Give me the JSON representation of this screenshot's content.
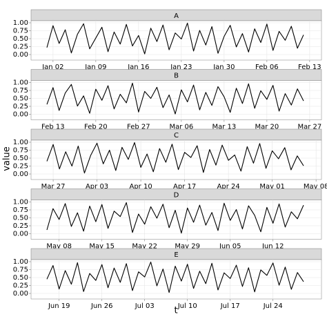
{
  "x_label": "t",
  "y_label": "value",
  "chart_data": [
    {
      "type": "line",
      "title": "A",
      "x": [
        "Jan 01",
        "Jan 02",
        "Jan 03",
        "Jan 04",
        "Jan 05",
        "Jan 06",
        "Jan 07",
        "Jan 08",
        "Jan 09",
        "Jan 10",
        "Jan 11",
        "Jan 12",
        "Jan 13",
        "Jan 14",
        "Jan 15",
        "Jan 16",
        "Jan 17",
        "Jan 18",
        "Jan 19",
        "Jan 20",
        "Jan 21",
        "Jan 22",
        "Jan 23",
        "Jan 24",
        "Jan 25",
        "Jan 26",
        "Jan 27",
        "Jan 28",
        "Jan 29",
        "Jan 30",
        "Jan 31",
        "Feb 01",
        "Feb 02",
        "Feb 03",
        "Feb 04",
        "Feb 05",
        "Feb 06",
        "Feb 07",
        "Feb 08",
        "Feb 09",
        "Feb 10",
        "Feb 11",
        "Feb 12"
      ],
      "values": [
        0.22,
        0.91,
        0.35,
        0.78,
        0.05,
        0.64,
        0.97,
        0.18,
        0.52,
        0.86,
        0.09,
        0.71,
        0.33,
        0.95,
        0.27,
        0.6,
        0.02,
        0.83,
        0.41,
        0.93,
        0.15,
        0.68,
        0.49,
        0.99,
        0.11,
        0.76,
        0.3,
        0.88,
        0.04,
        0.57,
        0.92,
        0.24,
        0.66,
        0.08,
        0.81,
        0.38,
        0.96,
        0.13,
        0.73,
        0.45,
        0.89,
        0.2,
        0.62
      ],
      "color": "#000000",
      "xlim": [
        "Jan 01",
        "Feb 12"
      ],
      "xticks": [
        "Jan 02",
        "Jan 09",
        "Jan 16",
        "Jan 23",
        "Jan 30",
        "Feb 06",
        "Feb 13"
      ],
      "ylim": [
        0,
        1
      ],
      "yticks": [
        {
          "value": 0,
          "label": "0.00"
        },
        0.25,
        {
          "value": 0.5,
          "label": "0.50"
        },
        0.75,
        {
          "value": 1,
          "label": "1.00"
        }
      ],
      "grid": true
    },
    {
      "type": "line",
      "title": "B",
      "x": [
        "Feb 12",
        "Feb 13",
        "Feb 14",
        "Feb 15",
        "Feb 16",
        "Feb 17",
        "Feb 18",
        "Feb 19",
        "Feb 20",
        "Feb 21",
        "Feb 22",
        "Feb 23",
        "Feb 24",
        "Feb 25",
        "Feb 26",
        "Feb 27",
        "Feb 28",
        "Mar 01",
        "Mar 02",
        "Mar 03",
        "Mar 04",
        "Mar 05",
        "Mar 06",
        "Mar 07",
        "Mar 08",
        "Mar 09",
        "Mar 10",
        "Mar 11",
        "Mar 12",
        "Mar 13",
        "Mar 14",
        "Mar 15",
        "Mar 16",
        "Mar 17",
        "Mar 18",
        "Mar 19",
        "Mar 20",
        "Mar 21",
        "Mar 22",
        "Mar 23",
        "Mar 24",
        "Mar 25",
        "Mar 26"
      ],
      "values": [
        0.31,
        0.84,
        0.12,
        0.67,
        0.94,
        0.26,
        0.58,
        0.03,
        0.79,
        0.44,
        0.9,
        0.17,
        0.63,
        0.36,
        0.98,
        0.07,
        0.72,
        0.5,
        0.85,
        0.21,
        0.61,
        0.01,
        0.77,
        0.39,
        0.92,
        0.14,
        0.69,
        0.28,
        0.87,
        0.55,
        0.06,
        0.82,
        0.34,
        0.96,
        0.19,
        0.74,
        0.47,
        0.91,
        0.1,
        0.65,
        0.29,
        0.8,
        0.42
      ],
      "color": "#000000",
      "xlim": [
        "Feb 12",
        "Mar 26"
      ],
      "xticks": [
        "Feb 13",
        "Feb 20",
        "Feb 27",
        "Mar 06",
        "Mar 13",
        "Mar 20",
        "Mar 27"
      ],
      "ylim": [
        0,
        1
      ],
      "yticks": [
        {
          "value": 0,
          "label": "0.00"
        },
        0.25,
        {
          "value": 0.5,
          "label": "0.50"
        },
        0.75,
        {
          "value": 1,
          "label": "1.00"
        }
      ],
      "grid": true
    },
    {
      "type": "line",
      "title": "C",
      "x": [
        "Mar 26",
        "Mar 27",
        "Mar 28",
        "Mar 29",
        "Mar 30",
        "Mar 31",
        "Apr 01",
        "Apr 02",
        "Apr 03",
        "Apr 04",
        "Apr 05",
        "Apr 06",
        "Apr 07",
        "Apr 08",
        "Apr 09",
        "Apr 10",
        "Apr 11",
        "Apr 12",
        "Apr 13",
        "Apr 14",
        "Apr 15",
        "Apr 16",
        "Apr 17",
        "Apr 18",
        "Apr 19",
        "Apr 20",
        "Apr 21",
        "Apr 22",
        "Apr 23",
        "Apr 24",
        "Apr 25",
        "Apr 26",
        "Apr 27",
        "Apr 28",
        "Apr 29",
        "Apr 30",
        "May 01",
        "May 02",
        "May 03",
        "May 04",
        "May 05",
        "May 06"
      ],
      "values": [
        0.4,
        0.93,
        0.16,
        0.7,
        0.25,
        0.88,
        0.03,
        0.59,
        0.97,
        0.32,
        0.75,
        0.11,
        0.84,
        0.46,
        0.99,
        0.21,
        0.63,
        0.07,
        0.8,
        0.37,
        0.94,
        0.14,
        0.68,
        0.52,
        0.89,
        0.05,
        0.77,
        0.28,
        0.91,
        0.43,
        0.6,
        0.09,
        0.86,
        0.34,
        0.96,
        0.18,
        0.73,
        0.48,
        0.83,
        0.13,
        0.57,
        0.26
      ],
      "color": "#000000",
      "xlim": [
        "Mar 26",
        "May 06"
      ],
      "xticks": [
        "Mar 27",
        "Apr 03",
        "Apr 10",
        "Apr 17",
        "Apr 24",
        "May 01",
        "May 08"
      ],
      "ylim": [
        0,
        1
      ],
      "yticks": [
        {
          "value": 0,
          "label": "0.00"
        },
        0.25,
        {
          "value": 0.5,
          "label": "0.50"
        },
        0.75,
        {
          "value": 1,
          "label": "1.00"
        }
      ],
      "grid": true
    },
    {
      "type": "line",
      "title": "D",
      "x": [
        "May 06",
        "May 07",
        "May 08",
        "May 09",
        "May 10",
        "May 11",
        "May 12",
        "May 13",
        "May 14",
        "May 15",
        "May 16",
        "May 17",
        "May 18",
        "May 19",
        "May 20",
        "May 21",
        "May 22",
        "May 23",
        "May 24",
        "May 25",
        "May 26",
        "May 27",
        "May 28",
        "May 29",
        "May 30",
        "May 31",
        "Jun 01",
        "Jun 02",
        "Jun 03",
        "Jun 04",
        "Jun 05",
        "Jun 06",
        "Jun 07",
        "Jun 08",
        "Jun 09",
        "Jun 10",
        "Jun 11",
        "Jun 12",
        "Jun 13",
        "Jun 14",
        "Jun 15",
        "Jun 16",
        "Jun 17"
      ],
      "values": [
        0.12,
        0.79,
        0.45,
        0.95,
        0.23,
        0.66,
        0.08,
        0.87,
        0.38,
        0.92,
        0.17,
        0.71,
        0.54,
        0.98,
        0.04,
        0.62,
        0.3,
        0.85,
        0.49,
        0.93,
        0.19,
        0.74,
        0.02,
        0.81,
        0.36,
        0.9,
        0.27,
        0.67,
        0.1,
        0.96,
        0.42,
        0.76,
        0.15,
        0.88,
        0.58,
        0.06,
        0.83,
        0.33,
        0.94,
        0.21,
        0.69,
        0.47,
        0.9
      ],
      "color": "#000000",
      "xlim": [
        "May 06",
        "Jun 17"
      ],
      "xticks": [
        "May 08",
        "May 15",
        "May 22",
        "May 29",
        "Jun 05",
        "Jun 12"
      ],
      "ylim": [
        0,
        1
      ],
      "yticks": [
        {
          "value": 0,
          "label": "0.00"
        },
        0.25,
        {
          "value": 0.5,
          "label": "0.50"
        },
        0.75,
        {
          "value": 1,
          "label": "1.00"
        }
      ],
      "grid": true
    },
    {
      "type": "line",
      "title": "E",
      "x": [
        "Jun 17",
        "Jun 18",
        "Jun 19",
        "Jun 20",
        "Jun 21",
        "Jun 22",
        "Jun 23",
        "Jun 24",
        "Jun 25",
        "Jun 26",
        "Jun 27",
        "Jun 28",
        "Jun 29",
        "Jun 30",
        "Jul 01",
        "Jul 02",
        "Jul 03",
        "Jul 04",
        "Jul 05",
        "Jul 06",
        "Jul 07",
        "Jul 08",
        "Jul 09",
        "Jul 10",
        "Jul 11",
        "Jul 12",
        "Jul 13",
        "Jul 14",
        "Jul 15",
        "Jul 16",
        "Jul 17",
        "Jul 18",
        "Jul 19",
        "Jul 20",
        "Jul 21",
        "Jul 22",
        "Jul 23",
        "Jul 24",
        "Jul 25",
        "Jul 26",
        "Jul 27",
        "Jul 28",
        "Jul 29"
      ],
      "values": [
        0.45,
        0.88,
        0.14,
        0.72,
        0.29,
        0.97,
        0.06,
        0.63,
        0.41,
        0.91,
        0.18,
        0.8,
        0.35,
        0.94,
        0.09,
        0.68,
        0.52,
        0.99,
        0.24,
        0.77,
        0.03,
        0.86,
        0.39,
        0.92,
        0.16,
        0.7,
        0.31,
        0.95,
        0.11,
        0.65,
        0.47,
        0.89,
        0.22,
        0.81,
        0.05,
        0.74,
        0.57,
        0.96,
        0.26,
        0.83,
        0.13,
        0.66,
        0.37
      ],
      "color": "#000000",
      "xlim": [
        "Jun 17",
        "Jul 29"
      ],
      "xticks": [
        "Jun 19",
        "Jun 26",
        "Jul 03",
        "Jul 10",
        "Jul 17",
        "Jul 24"
      ],
      "ylim": [
        0,
        1
      ],
      "yticks": [
        {
          "value": 0,
          "label": "0.00"
        },
        0.25,
        {
          "value": 0.5,
          "label": "0.50"
        },
        0.75,
        {
          "value": 1,
          "label": "1.00"
        }
      ],
      "grid": true
    }
  ]
}
